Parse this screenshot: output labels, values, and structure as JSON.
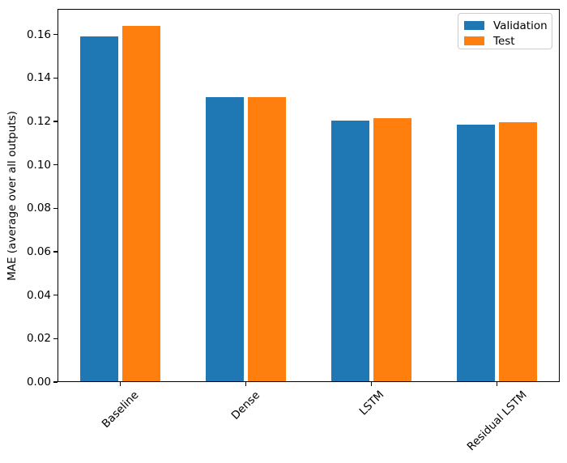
{
  "figure": {
    "background": "#ffffff",
    "text_color": "#000000",
    "spine_color": "#000000",
    "legend_border_color": "#cccccc"
  },
  "chart_data": {
    "type": "bar",
    "title": "",
    "categories": [
      "Baseline",
      "Dense",
      "LSTM",
      "Residual LSTM"
    ],
    "series": [
      {
        "name": "Validation",
        "color": "#1f77b4",
        "values": [
          0.159,
          0.131,
          0.1205,
          0.1185
        ]
      },
      {
        "name": "Test",
        "color": "#ff7f0e",
        "values": [
          0.164,
          0.131,
          0.1215,
          0.1195
        ]
      }
    ],
    "xlabel": "",
    "ylabel": "MAE (average over all outputs)",
    "ylim": [
      0,
      0.1718
    ],
    "yticks": [
      0,
      0.02,
      0.04,
      0.06,
      0.08,
      0.1,
      0.12,
      0.14,
      0.16
    ],
    "ytick_labels": [
      "0.00",
      "0.02",
      "0.04",
      "0.06",
      "0.08",
      "0.10",
      "0.12",
      "0.14",
      "0.16"
    ],
    "xtick_rotation_deg": 45,
    "bar_width_fraction": 0.306,
    "group_offset_fraction": 0.169,
    "grid": false,
    "legend": {
      "position": "upper right",
      "entries": [
        "Validation",
        "Test"
      ]
    }
  }
}
